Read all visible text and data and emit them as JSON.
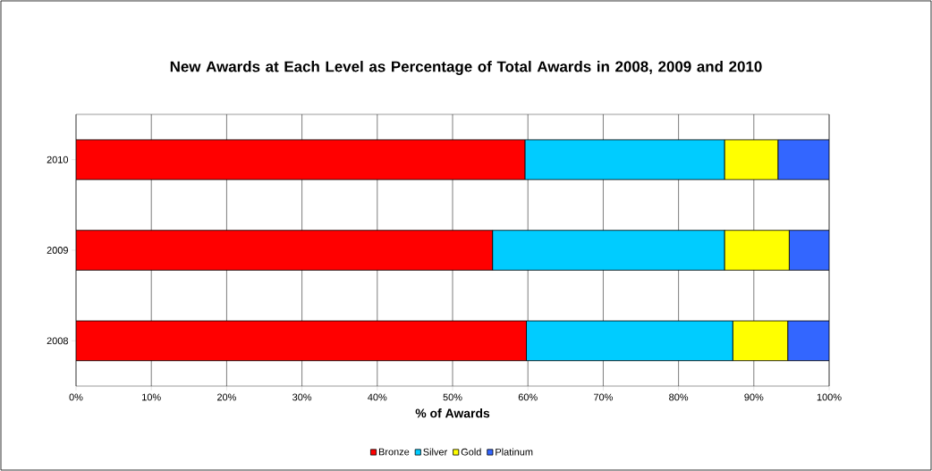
{
  "chart_data": {
    "type": "bar",
    "orientation": "horizontal",
    "stacked": true,
    "title": "New Awards at Each Level as Percentage of Total Awards in 2008, 2009 and 2010",
    "xlabel": "% of Awards",
    "categories": [
      "2010",
      "2009",
      "2008"
    ],
    "series": [
      {
        "name": "Bronze",
        "color": "#ff0000",
        "values": [
          59.6,
          55.3,
          59.8
        ]
      },
      {
        "name": "Silver",
        "color": "#00ccff",
        "values": [
          26.5,
          30.8,
          27.4
        ]
      },
      {
        "name": "Gold",
        "color": "#ffff00",
        "values": [
          7.1,
          8.6,
          7.3
        ]
      },
      {
        "name": "Platinum",
        "color": "#3366ff",
        "values": [
          6.8,
          5.3,
          5.5
        ]
      }
    ],
    "xlim": [
      0,
      100
    ],
    "xticks": [
      {
        "value": 0,
        "label": "0%"
      },
      {
        "value": 10,
        "label": "10%"
      },
      {
        "value": 20,
        "label": "20%"
      },
      {
        "value": 30,
        "label": "30%"
      },
      {
        "value": 40,
        "label": "40%"
      },
      {
        "value": 50,
        "label": "50%"
      },
      {
        "value": 60,
        "label": "60%"
      },
      {
        "value": 70,
        "label": "70%"
      },
      {
        "value": 80,
        "label": "80%"
      },
      {
        "value": 90,
        "label": "90%"
      },
      {
        "value": 100,
        "label": "100%"
      }
    ],
    "grid": "x",
    "legend": "bottom"
  }
}
